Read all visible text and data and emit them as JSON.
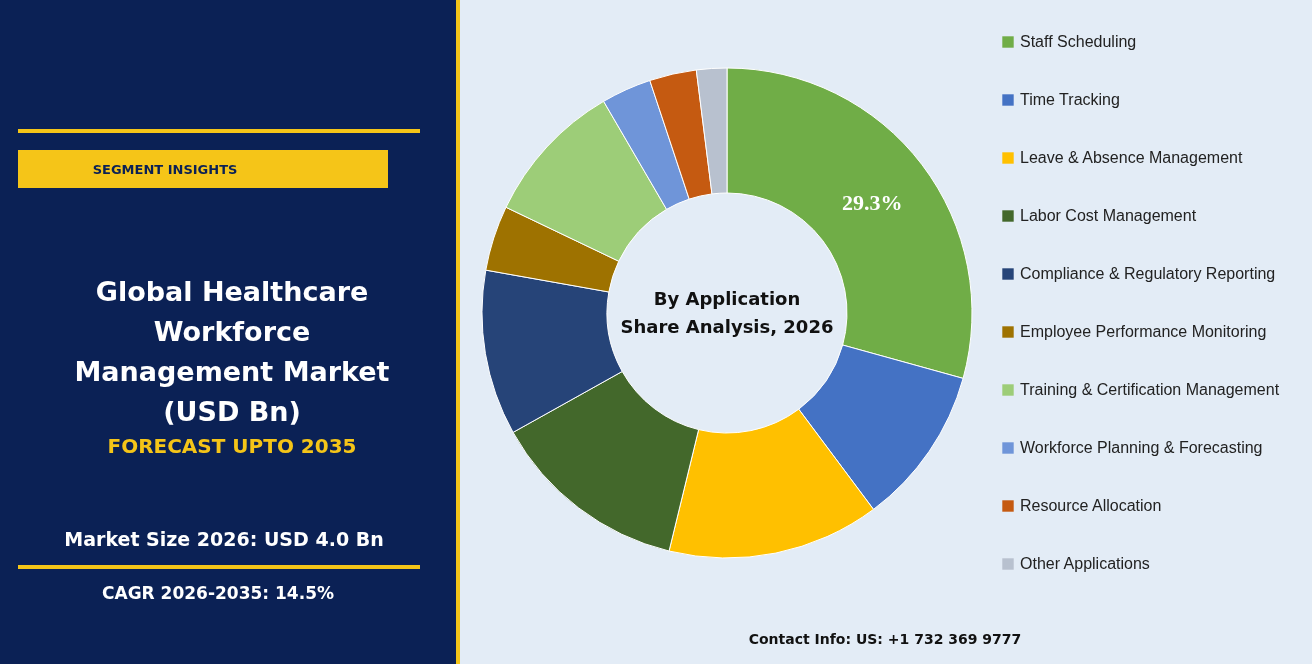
{
  "chart_data": {
    "type": "donut",
    "title": "Global Healthcare Workforce Management Market (USD Bn)",
    "subtitle": "FORECAST UPTO 2035",
    "categories": [
      "Staff Scheduling",
      "Time Tracking",
      "Leave & Absence Management",
      "Labor Cost Management",
      "Compliance & Regulatory Reporting",
      "Employee Performance Monitoring",
      "Training & Certification Management",
      "Workforce Planning & Forecasting",
      "Resource Allocation",
      "Other Applications"
    ],
    "values": [
      29.3,
      10.5,
      14.0,
      13.1,
      10.9,
      4.3,
      9.5,
      3.3,
      3.1,
      2.0
    ],
    "colors": [
      "#70ad47",
      "#4472c4",
      "#ffc000",
      "#43682b",
      "#264478",
      "#9e7200",
      "#9dcd78",
      "#6f95d9",
      "#c55a11",
      "#b8c1cf"
    ],
    "value_labels": [
      "29.3%",
      null,
      null,
      null,
      null,
      null,
      null,
      null,
      null,
      null
    ],
    "legend": "right",
    "annotations": [
      "SEGMENT INSIGHTS",
      "By Application",
      "Share Analysis, 2026",
      "Market Size 2026: USD 4.0 Bn",
      "CAGR 2026-2035: 14.5%",
      "Contact Info: US: +1 732 369 9777"
    ]
  }
}
